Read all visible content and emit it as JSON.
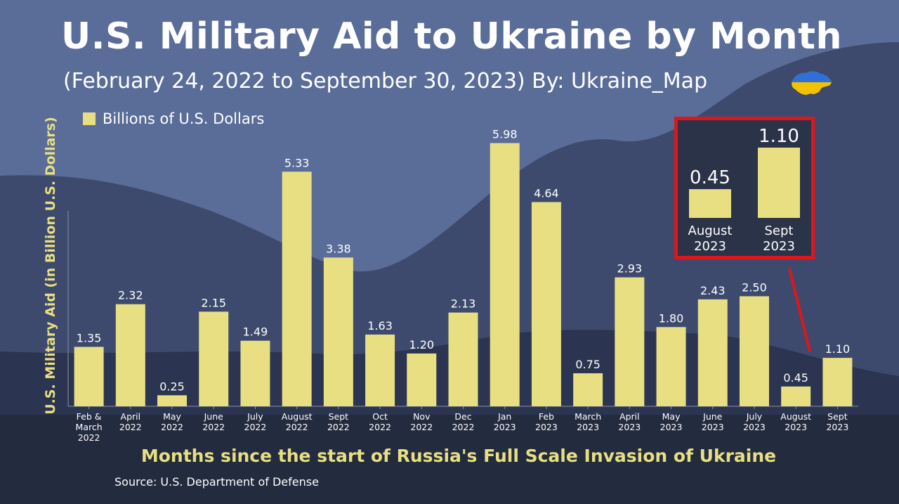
{
  "header": {
    "title": "U.S. Military Aid to Ukraine by Month",
    "subtitle": "(February 24, 2022 to September 30, 2023)  By: Ukraine_Map",
    "map_icon": "ukraine-map-icon"
  },
  "colors": {
    "bar": "#e8df82",
    "axis_label": "#e8df82",
    "inset_border": "#e0151b",
    "background_dark": "#232b3e",
    "background_mid": "#3a4666",
    "background_light": "#5c6f9c"
  },
  "source": "Source: U.S. Department of Defense",
  "chart_data": {
    "type": "bar",
    "title": "U.S. Military Aid to Ukraine by Month",
    "subtitle": "(February 24, 2022 to September 30, 2023)  By: Ukraine_Map",
    "xlabel": "Months since the start of Russia's Full Scale Invasion of Ukraine",
    "ylabel": "U.S. Military Aid (in Billion U.S. Dollars)",
    "legend": {
      "label": "Billions of U.S. Dollars",
      "position": "top-left"
    },
    "grid": false,
    "ylim": [
      0,
      6.5
    ],
    "categories": [
      [
        "Feb &",
        "March",
        "2022"
      ],
      [
        "April",
        "2022"
      ],
      [
        "May",
        "2022"
      ],
      [
        "June",
        "2022"
      ],
      [
        "July",
        "2022"
      ],
      [
        "August",
        "2022"
      ],
      [
        "Sept",
        "2022"
      ],
      [
        "Oct",
        "2022"
      ],
      [
        "Nov",
        "2022"
      ],
      [
        "Dec",
        "2022"
      ],
      [
        "Jan",
        "2023"
      ],
      [
        "Feb",
        "2023"
      ],
      [
        "March",
        "2023"
      ],
      [
        "April",
        "2023"
      ],
      [
        "May",
        "2023"
      ],
      [
        "June",
        "2023"
      ],
      [
        "July",
        "2023"
      ],
      [
        "August",
        "2023"
      ],
      [
        "Sept",
        "2023"
      ]
    ],
    "values": [
      1.35,
      2.32,
      0.25,
      2.15,
      1.49,
      5.33,
      3.38,
      1.63,
      1.2,
      2.13,
      5.98,
      4.64,
      0.75,
      2.93,
      1.8,
      2.43,
      2.5,
      0.45,
      1.1
    ],
    "value_labels": [
      "1.35",
      "2.32",
      "0.25",
      "2.15",
      "1.49",
      "5.33",
      "3.38",
      "1.63",
      "1.20",
      "2.13",
      "5.98",
      "4.64",
      "0.75",
      "2.93",
      "1.80",
      "2.43",
      "2.50",
      "0.45",
      "1.10"
    ],
    "inset": {
      "categories": [
        [
          "August",
          "2023"
        ],
        [
          "Sept",
          "2023"
        ]
      ],
      "values": [
        0.45,
        1.1
      ],
      "value_labels": [
        "0.45",
        "1.10"
      ]
    }
  }
}
